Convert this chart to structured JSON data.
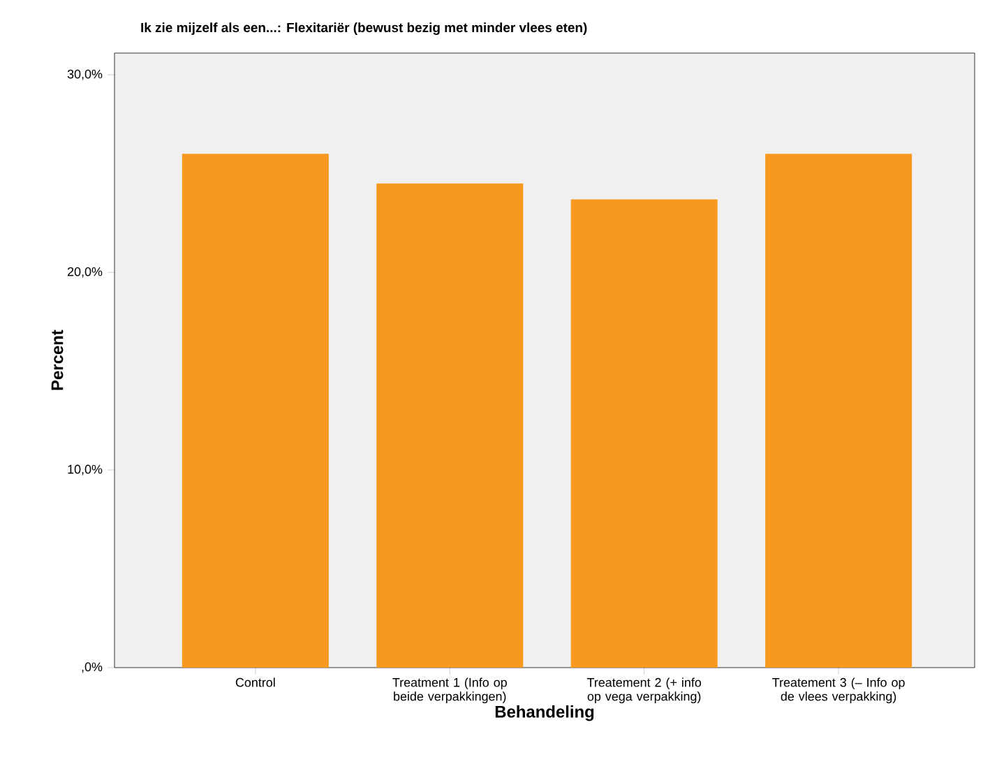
{
  "chart_data": {
    "type": "bar",
    "title": "Ik zie mijzelf als een...: Flexitariër (bewust bezig met minder vlees eten)",
    "xlabel": "Behandeling",
    "ylabel": "Percent",
    "categories": [
      "Control",
      "Treatment 1 (Info op beide verpakkingen)",
      "Treatement 2 (+ info op vega verpakking)",
      "Treatement 3 (– Info op de vlees verpakking)"
    ],
    "values": [
      26.0,
      24.5,
      23.7,
      26.0
    ],
    "color": "#f7991f",
    "ylim": [
      0,
      31.1
    ],
    "yticks": [
      {
        "value": 0,
        "label": ",0%"
      },
      {
        "value": 10,
        "label": "10,0%"
      },
      {
        "value": 20,
        "label": "20,0%"
      },
      {
        "value": 30,
        "label": "30,0%"
      }
    ]
  }
}
